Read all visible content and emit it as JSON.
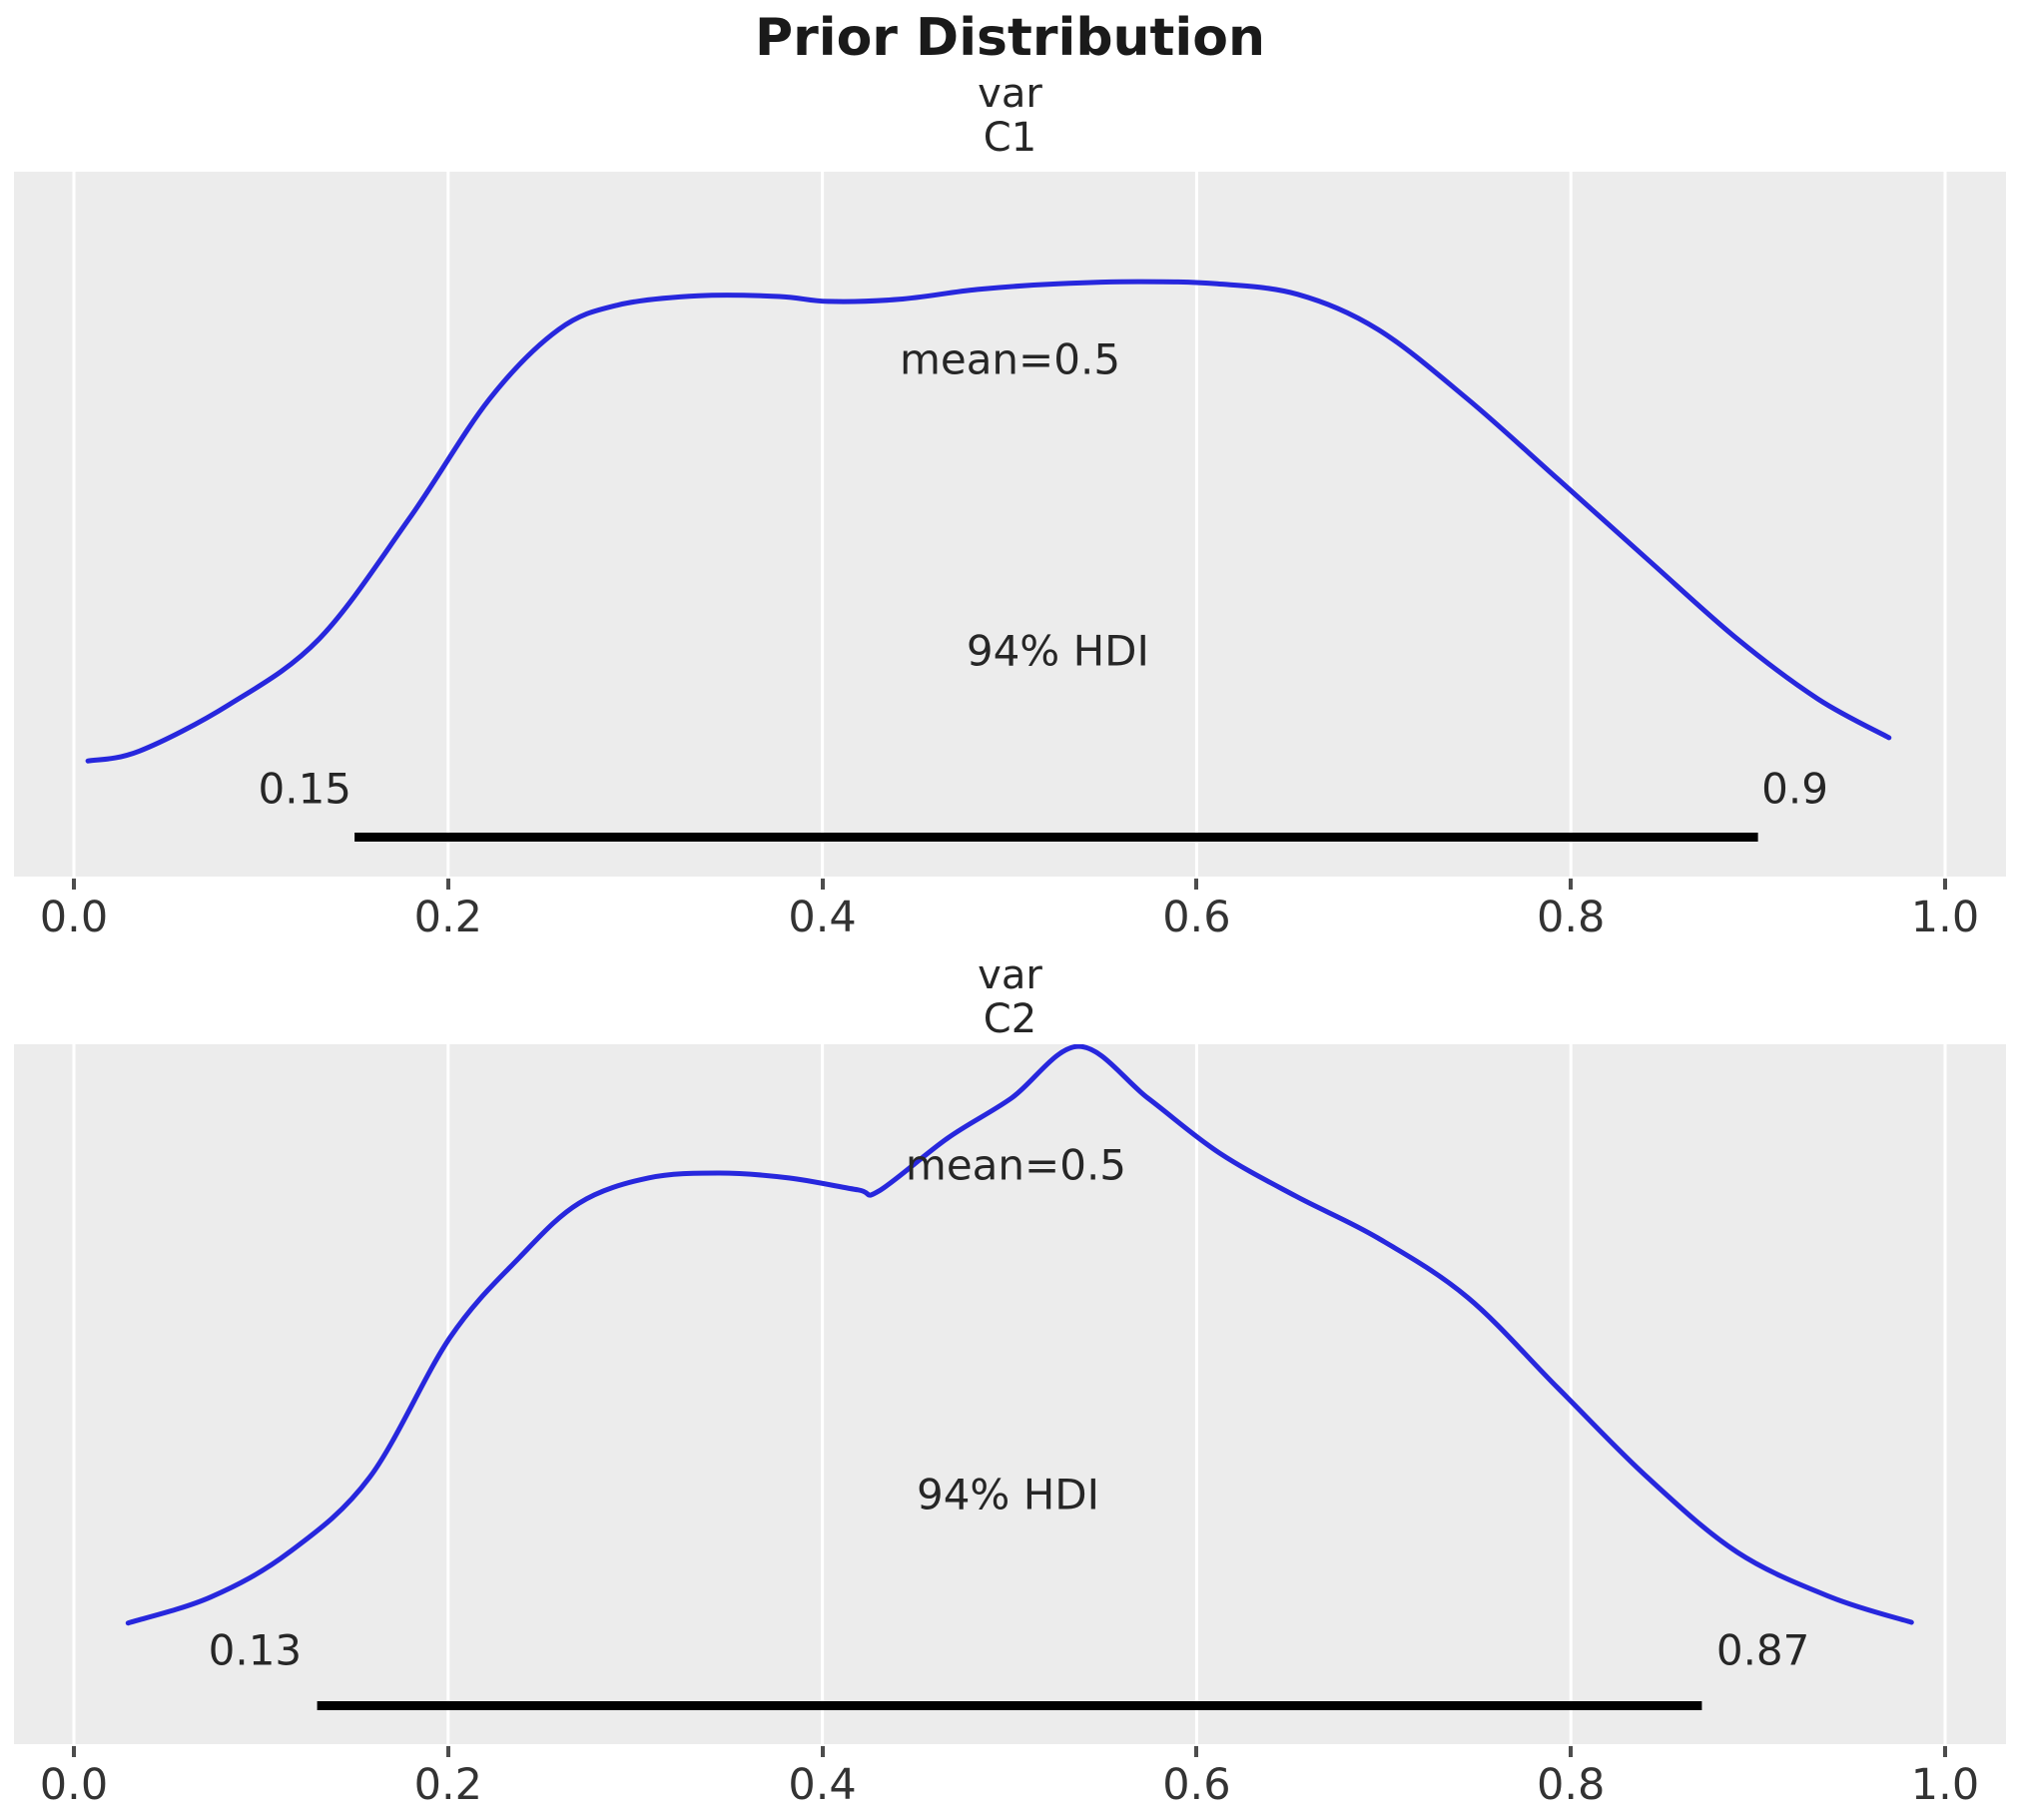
{
  "figure": {
    "title": "Prior Distribution",
    "panel_background": "#ececec",
    "gridline_color": "#ffffff",
    "curve_color": "#2727dd",
    "hdi_bar_color": "#000000",
    "text_color": "#262626"
  },
  "x_axis": {
    "tick_labels": [
      "0.0",
      "0.2",
      "0.4",
      "0.6",
      "0.8",
      "1.0"
    ],
    "tick_values": [
      0.0,
      0.2,
      0.4,
      0.6,
      0.8,
      1.0
    ],
    "range_shown": [
      -0.032,
      1.033
    ]
  },
  "chart_data": [
    {
      "type": "kde",
      "var_label": "var",
      "coord_label": "C1",
      "mean": 0.5,
      "mean_label": "mean=0.5",
      "hdi_probability": 0.94,
      "hdi_label": "94% HDI",
      "hdi_lower": 0.15,
      "hdi_upper": 0.9,
      "hdi_lower_label": "0.15",
      "hdi_upper_label": "0.9",
      "x": [
        0.0075,
        0.035,
        0.083,
        0.131,
        0.179,
        0.222,
        0.259,
        0.291,
        0.334,
        0.377,
        0.403,
        0.441,
        0.483,
        0.526,
        0.569,
        0.611,
        0.654,
        0.697,
        0.745,
        0.793,
        0.841,
        0.889,
        0.932,
        0.97
      ],
      "density": [
        0.164,
        0.178,
        0.244,
        0.337,
        0.507,
        0.677,
        0.776,
        0.811,
        0.824,
        0.823,
        0.816,
        0.819,
        0.833,
        0.841,
        0.844,
        0.841,
        0.826,
        0.776,
        0.677,
        0.564,
        0.45,
        0.337,
        0.252,
        0.197
      ]
    },
    {
      "type": "kde",
      "var_label": "var",
      "coord_label": "C2",
      "mean": 0.5,
      "mean_label": "mean=0.5",
      "hdi_probability": 0.94,
      "hdi_label": "94% HDI",
      "hdi_lower": 0.13,
      "hdi_upper": 0.87,
      "hdi_lower_label": "0.13",
      "hdi_upper_label": "0.87",
      "x": [
        0.029,
        0.073,
        0.115,
        0.158,
        0.201,
        0.238,
        0.27,
        0.307,
        0.345,
        0.382,
        0.419,
        0.43,
        0.467,
        0.501,
        0.537,
        0.574,
        0.612,
        0.653,
        0.697,
        0.745,
        0.793,
        0.841,
        0.889,
        0.939,
        0.982
      ],
      "density": [
        0.173,
        0.21,
        0.274,
        0.381,
        0.581,
        0.695,
        0.773,
        0.809,
        0.816,
        0.809,
        0.792,
        0.79,
        0.866,
        0.923,
        0.997,
        0.923,
        0.845,
        0.783,
        0.723,
        0.638,
        0.509,
        0.381,
        0.274,
        0.21,
        0.174
      ]
    }
  ]
}
